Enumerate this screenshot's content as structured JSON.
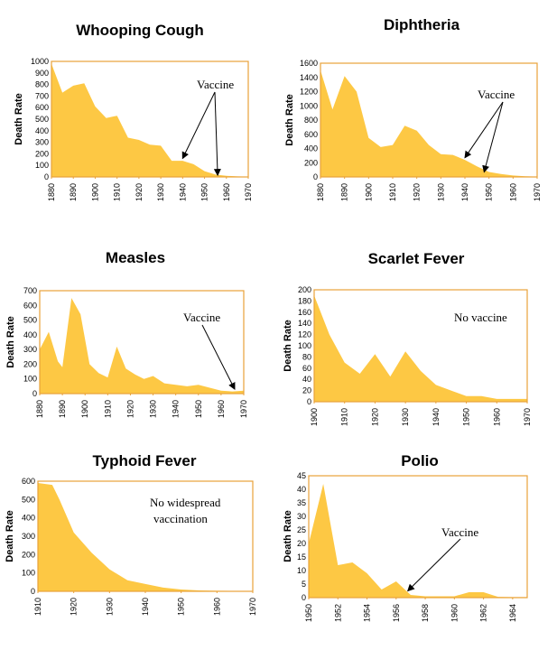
{
  "chart_data": [
    {
      "id": "whooping",
      "type": "area",
      "title": "Whooping Cough",
      "ylabel": "Death Rate",
      "xlabel": "",
      "xlim": [
        1880,
        1970
      ],
      "ylim": [
        0,
        1000
      ],
      "yticks": [
        0,
        100,
        200,
        300,
        400,
        500,
        600,
        700,
        800,
        900,
        1000
      ],
      "xticks": [
        1880,
        1890,
        1900,
        1910,
        1920,
        1930,
        1940,
        1950,
        1960,
        1970
      ],
      "x": [
        1880,
        1885,
        1890,
        1895,
        1900,
        1905,
        1910,
        1915,
        1920,
        1925,
        1930,
        1935,
        1940,
        1945,
        1950,
        1955,
        1960,
        1965,
        1970
      ],
      "values": [
        980,
        730,
        790,
        810,
        610,
        510,
        530,
        340,
        320,
        280,
        270,
        140,
        140,
        110,
        50,
        20,
        10,
        5,
        3
      ],
      "annotations": [
        {
          "text": "Vaccine",
          "arrows_to": [
            [
              1940,
              160
            ],
            [
              1956,
              15
            ]
          ]
        }
      ]
    },
    {
      "id": "diphtheria",
      "type": "area",
      "title": "Diphtheria",
      "ylabel": "Death Rate",
      "xlabel": "",
      "xlim": [
        1880,
        1970
      ],
      "ylim": [
        0,
        1600
      ],
      "yticks": [
        0,
        200,
        400,
        600,
        800,
        1000,
        1200,
        1400,
        1600
      ],
      "xticks": [
        1880,
        1890,
        1900,
        1910,
        1920,
        1930,
        1940,
        1950,
        1960,
        1970
      ],
      "x": [
        1880,
        1885,
        1890,
        1895,
        1900,
        1905,
        1910,
        1915,
        1920,
        1925,
        1930,
        1935,
        1940,
        1945,
        1950,
        1955,
        1960,
        1965,
        1970
      ],
      "values": [
        1500,
        950,
        1420,
        1200,
        550,
        420,
        450,
        720,
        650,
        450,
        320,
        310,
        240,
        150,
        70,
        40,
        20,
        10,
        5
      ],
      "annotations": [
        {
          "text": "Vaccine",
          "arrows_to": [
            [
              1940,
              270
            ],
            [
              1948,
              70
            ]
          ]
        }
      ]
    },
    {
      "id": "measles",
      "type": "area",
      "title": "Measles",
      "ylabel": "Death Rate",
      "xlabel": "",
      "xlim": [
        1880,
        1970
      ],
      "ylim": [
        0,
        700
      ],
      "yticks": [
        0,
        100,
        200,
        300,
        400,
        500,
        600,
        700
      ],
      "xticks": [
        1880,
        1890,
        1900,
        1910,
        1920,
        1930,
        1940,
        1950,
        1960,
        1970
      ],
      "x": [
        1880,
        1884,
        1888,
        1890,
        1894,
        1898,
        1902,
        1906,
        1910,
        1914,
        1918,
        1922,
        1926,
        1930,
        1935,
        1940,
        1945,
        1950,
        1955,
        1960,
        1965,
        1970
      ],
      "values": [
        300,
        420,
        220,
        180,
        650,
        540,
        200,
        140,
        110,
        320,
        170,
        130,
        100,
        120,
        70,
        60,
        50,
        60,
        40,
        20,
        15,
        20
      ],
      "annotations": [
        {
          "text": "Vaccine",
          "arrows_to": [
            [
              1966,
              30
            ]
          ]
        }
      ]
    },
    {
      "id": "scarlet",
      "type": "area",
      "title": "Scarlet Fever",
      "ylabel": "Death Rate",
      "xlabel": "",
      "xlim": [
        1900,
        1970
      ],
      "ylim": [
        0,
        200
      ],
      "yticks": [
        0,
        20,
        40,
        60,
        80,
        100,
        120,
        140,
        160,
        180,
        200
      ],
      "xticks": [
        1900,
        1910,
        1920,
        1930,
        1940,
        1950,
        1960,
        1970
      ],
      "x": [
        1900,
        1905,
        1910,
        1915,
        1920,
        1925,
        1930,
        1935,
        1940,
        1945,
        1950,
        1955,
        1960,
        1965,
        1970
      ],
      "values": [
        190,
        120,
        70,
        50,
        85,
        45,
        90,
        55,
        30,
        20,
        10,
        10,
        5,
        5,
        5
      ],
      "annotations": [
        {
          "text": "No vaccine"
        }
      ]
    },
    {
      "id": "typhoid",
      "type": "area",
      "title": "Typhoid Fever",
      "ylabel": "Death Rate",
      "xlabel": "",
      "xlim": [
        1910,
        1970
      ],
      "ylim": [
        0,
        600
      ],
      "yticks": [
        0,
        100,
        200,
        300,
        400,
        500,
        600
      ],
      "xticks": [
        1910,
        1920,
        1930,
        1940,
        1950,
        1960,
        1970
      ],
      "x": [
        1910,
        1914,
        1916,
        1920,
        1925,
        1930,
        1935,
        1940,
        1945,
        1950,
        1955,
        1960,
        1965,
        1970
      ],
      "values": [
        590,
        580,
        500,
        320,
        210,
        120,
        60,
        40,
        20,
        10,
        5,
        3,
        2,
        2
      ],
      "annotations": [
        {
          "text": "No widespread"
        },
        {
          "text": "vaccination"
        }
      ]
    },
    {
      "id": "polio",
      "type": "area",
      "title": "Polio",
      "ylabel": "Death Rate",
      "xlabel": "",
      "xlim": [
        1950,
        1965
      ],
      "ylim": [
        0,
        45
      ],
      "yticks": [
        0,
        5,
        10,
        15,
        20,
        25,
        30,
        35,
        40,
        45
      ],
      "xticks": [
        1950,
        1952,
        1954,
        1956,
        1958,
        1960,
        1962,
        1964
      ],
      "x": [
        1950,
        1951,
        1952,
        1953,
        1954,
        1955,
        1956,
        1957,
        1958,
        1959,
        1960,
        1961,
        1962,
        1963,
        1964,
        1965
      ],
      "values": [
        20,
        42,
        12,
        13,
        9,
        3,
        6,
        1,
        0.5,
        0.5,
        0.5,
        2,
        2,
        0.3,
        0.2,
        0.2
      ],
      "annotations": [
        {
          "text": "Vaccine",
          "arrows_to": [
            [
              1956.8,
              2.5
            ]
          ]
        }
      ]
    }
  ]
}
